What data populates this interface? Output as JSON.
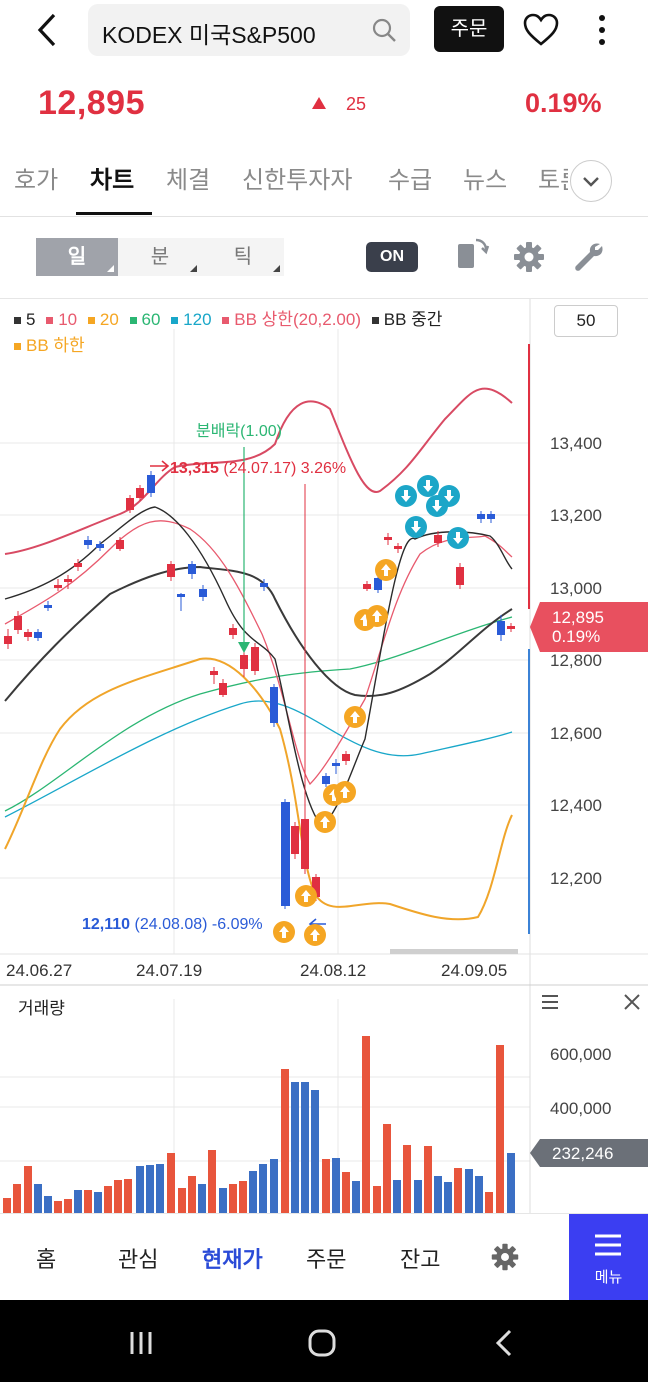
{
  "header": {
    "search_text": "KODEX 미국S&P500",
    "order_label": "주문"
  },
  "price": {
    "current": "12,895",
    "change": "25",
    "change_pct": "0.19%"
  },
  "tabs": [
    "호가",
    "차트",
    "체결",
    "신한투자자",
    "수급",
    "뉴스",
    "토론"
  ],
  "active_tab": "차트",
  "toolbar": {
    "periods": [
      "일",
      "분",
      "틱"
    ],
    "selected_period": "일",
    "on_label": "ON"
  },
  "legend": [
    {
      "label": "5",
      "color": "#333333"
    },
    {
      "label": "10",
      "color": "#e85a6e"
    },
    {
      "label": "20",
      "color": "#f5a623"
    },
    {
      "label": "60",
      "color": "#2bb673"
    },
    {
      "label": "120",
      "color": "#19a7c9"
    },
    {
      "label": "BB 상한(20,2.00)",
      "color": "#e85a6e"
    },
    {
      "label": "BB 중간",
      "color": "#333333"
    },
    {
      "label": "BB 하한",
      "color": "#f5a623"
    }
  ],
  "period_count": "50",
  "chart_data": {
    "type": "candlestick",
    "y_ticks": [
      "13,400",
      "13,200",
      "13,000",
      "12,800",
      "12,600",
      "12,400",
      "12,200"
    ],
    "x_labels": [
      "24.06.27",
      "24.07.19",
      "24.08.12",
      "24.09.05"
    ],
    "current_price_tag": {
      "price": "12,895",
      "pct": "0.19%"
    },
    "annotations": {
      "dividend": "분배락(1.00)",
      "high": {
        "price": "13,315",
        "date": "(24.07.17)",
        "pct": "3.26%"
      },
      "low": {
        "price": "12,110",
        "date": "(24.08.08)",
        "pct": "-6.09%"
      }
    }
  },
  "volume": {
    "title": "거래량",
    "y_ticks": [
      "600,000",
      "400,000"
    ],
    "current_tag": "232,246"
  },
  "bottom_nav": [
    "홈",
    "관심",
    "현재가",
    "주문",
    "잔고"
  ],
  "active_nav": "현재가",
  "menu_label": "메뉴"
}
